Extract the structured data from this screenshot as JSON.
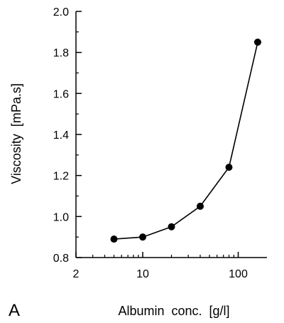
{
  "panel_label": "A",
  "chart_data": {
    "type": "line",
    "title": "",
    "xlabel": "Albumin  conc.  [g/l]",
    "ylabel": "Viscosity  [mPa.s]",
    "x_scale": "log",
    "xlim": [
      2,
      200
    ],
    "ylim": [
      0.8,
      2.0
    ],
    "x_ticks": [
      2,
      10,
      100
    ],
    "x_tick_labels": [
      "2",
      "10",
      "100"
    ],
    "y_ticks": [
      0.8,
      1.0,
      1.2,
      1.4,
      1.6,
      1.8,
      2.0
    ],
    "y_tick_labels": [
      "0.8",
      "1.0",
      "1.2",
      "1.4",
      "1.6",
      "1.8",
      "2.0"
    ],
    "grid": false,
    "marker": "filled-circle",
    "series": [
      {
        "x": [
          5,
          10,
          20,
          40,
          80,
          160
        ],
        "y": [
          0.89,
          0.9,
          0.95,
          1.05,
          1.24,
          1.85
        ]
      }
    ]
  }
}
